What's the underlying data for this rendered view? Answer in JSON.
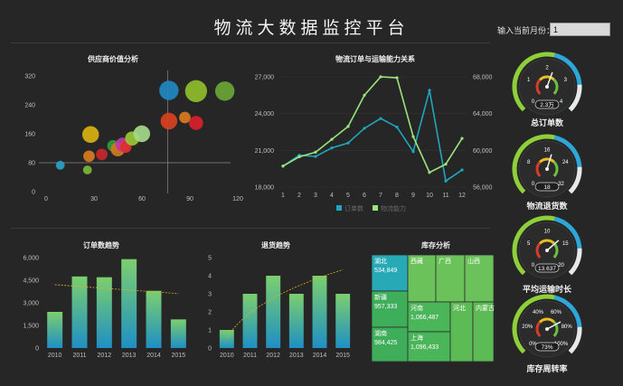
{
  "header": {
    "title": "物流大数据监控平台",
    "month_label": "输入当前月份：",
    "month_value": "1"
  },
  "colors": {
    "background": "#262626",
    "line_blue": "#21a5be",
    "line_green": "#9be37b",
    "bar_top_green": "#7ccf6e",
    "bar_bottom_blue": "#1f8fc4",
    "trend_yellow": "#e0b020"
  },
  "chart_data": [
    {
      "id": "supplier-bubble",
      "type": "scatter",
      "title": "供应商价值分析",
      "xlim": [
        0,
        120
      ],
      "ylim": [
        0,
        320
      ],
      "x_ticks": [
        "0",
        "30",
        "60",
        "90",
        "120"
      ],
      "y_ticks": [
        "0",
        "80",
        "160",
        "240",
        "320"
      ],
      "reference_lines": {
        "x": 80,
        "y": 180
      },
      "points": [
        {
          "x": 10,
          "y": 78,
          "size": 2,
          "color": "#2aa2c8"
        },
        {
          "x": 27,
          "y": 65,
          "size": 2,
          "color": "#79b93a"
        },
        {
          "x": 28,
          "y": 103,
          "size": 3,
          "color": "#d97a20"
        },
        {
          "x": 36,
          "y": 108,
          "size": 3,
          "color": "#c8282a"
        },
        {
          "x": 29,
          "y": 163,
          "size": 5,
          "color": "#d8b210"
        },
        {
          "x": 43,
          "y": 132,
          "size": 3,
          "color": "#2f9b3d"
        },
        {
          "x": 46,
          "y": 122,
          "size": 4,
          "color": "#d07a20"
        },
        {
          "x": 49,
          "y": 135,
          "size": 4,
          "color": "#c23aa0"
        },
        {
          "x": 51,
          "y": 128,
          "size": 3,
          "color": "#e02e2e"
        },
        {
          "x": 55,
          "y": 152,
          "size": 4,
          "color": "#99c535"
        },
        {
          "x": 61,
          "y": 165,
          "size": 5,
          "color": "#a5d98a"
        },
        {
          "x": 78,
          "y": 285,
          "size": 6,
          "color": "#1f87c0"
        },
        {
          "x": 78,
          "y": 200,
          "size": 5,
          "color": "#d94020"
        },
        {
          "x": 88,
          "y": 210,
          "size": 3,
          "color": "#d87a20"
        },
        {
          "x": 95,
          "y": 283,
          "size": 7,
          "color": "#8fbd2a"
        },
        {
          "x": 95,
          "y": 195,
          "size": 4,
          "color": "#d81f2a"
        },
        {
          "x": 113,
          "y": 283,
          "size": 6,
          "color": "#6aa535"
        }
      ]
    },
    {
      "id": "orders-vs-capacity",
      "type": "line",
      "title": "物流订单与运输能力关系",
      "x": [
        "1",
        "2",
        "3",
        "4",
        "5",
        "6",
        "7",
        "8",
        "9",
        "10",
        "11",
        "12"
      ],
      "y_left_ticks": [
        "18,000",
        "21,000",
        "24,000",
        "27,000"
      ],
      "y_left_range": [
        18000,
        27000
      ],
      "y_right_ticks": [
        "56,000",
        "60,000",
        "64,000",
        "68,000"
      ],
      "y_right_range": [
        56000,
        68000
      ],
      "series": [
        {
          "name": "订单数",
          "axis": "left",
          "color": "#21a5be",
          "values": [
            19700,
            20600,
            20500,
            21200,
            21600,
            22800,
            23600,
            22900,
            20900,
            25900,
            18500,
            19400
          ]
        },
        {
          "name": "物流能力",
          "axis": "right",
          "color": "#9be37b",
          "values": [
            58300,
            59300,
            59800,
            61200,
            62600,
            66000,
            68000,
            67900,
            61500,
            57600,
            58500,
            61300
          ]
        }
      ]
    },
    {
      "id": "order-trend",
      "type": "bar",
      "title": "订单数趋势",
      "categories": [
        "2010",
        "2011",
        "2012",
        "2013",
        "2014",
        "2015"
      ],
      "values": [
        2400,
        4750,
        4700,
        5900,
        3800,
        1900
      ],
      "ylim": [
        0,
        6000
      ],
      "y_ticks": [
        "0",
        "1,500",
        "3,000",
        "4,500",
        "6,000"
      ],
      "trend": "linear"
    },
    {
      "id": "return-trend",
      "type": "bar",
      "title": "退货趋势",
      "categories": [
        "2010",
        "2011",
        "2012",
        "2013",
        "2014",
        "2015"
      ],
      "values": [
        1,
        3,
        4,
        3,
        4,
        3
      ],
      "ylim": [
        0,
        5
      ],
      "y_ticks": [
        "0",
        "1",
        "2",
        "3",
        "4",
        "5"
      ],
      "trend": "logarithmic"
    },
    {
      "id": "inventory-treemap",
      "type": "treemap",
      "title": "库存分析",
      "cells": [
        {
          "name": "湖北",
          "value": "534,849",
          "color": "#28a9b6"
        },
        {
          "name": "新疆",
          "value": "957,333",
          "color": "#3fae5a"
        },
        {
          "name": "湖南",
          "value": "984,425",
          "color": "#3fae5a"
        },
        {
          "name": "西藏",
          "value": "",
          "color": "#6cc25a"
        },
        {
          "name": "广西",
          "value": "",
          "color": "#6cc25a"
        },
        {
          "name": "山西",
          "value": "",
          "color": "#6cc25a"
        },
        {
          "name": "河南",
          "value": "1,066,487",
          "color": "#4bb55a"
        },
        {
          "name": "上海",
          "value": "1,096,433",
          "color": "#4bb55a"
        },
        {
          "name": "河北",
          "value": "",
          "color": "#5dbb55"
        },
        {
          "name": "内蒙古",
          "value": "",
          "color": "#5dbb55"
        }
      ]
    }
  ],
  "gauges": [
    {
      "id": "total-orders",
      "label": "总订单数",
      "value": "2.3万",
      "ticks": [
        "0",
        "1",
        "2",
        "3",
        "4"
      ],
      "max": 4,
      "reading": 2.3
    },
    {
      "id": "return-count",
      "label": "物流退货数",
      "value": "18",
      "ticks": [
        "0",
        "8",
        "16",
        "24",
        "32"
      ],
      "max": 32,
      "reading": 18
    },
    {
      "id": "avg-transport",
      "label": "平均运输时长",
      "value": "13.637",
      "ticks": [
        "0",
        "5",
        "10",
        "15",
        "20"
      ],
      "max": 20,
      "reading": 13.637
    },
    {
      "id": "inventory-turnover",
      "label": "库存周转率",
      "value": "73%",
      "ticks": [
        "0%",
        "20%",
        "40%",
        "60%",
        "80%",
        "100%"
      ],
      "max": 100,
      "reading": 73
    }
  ]
}
